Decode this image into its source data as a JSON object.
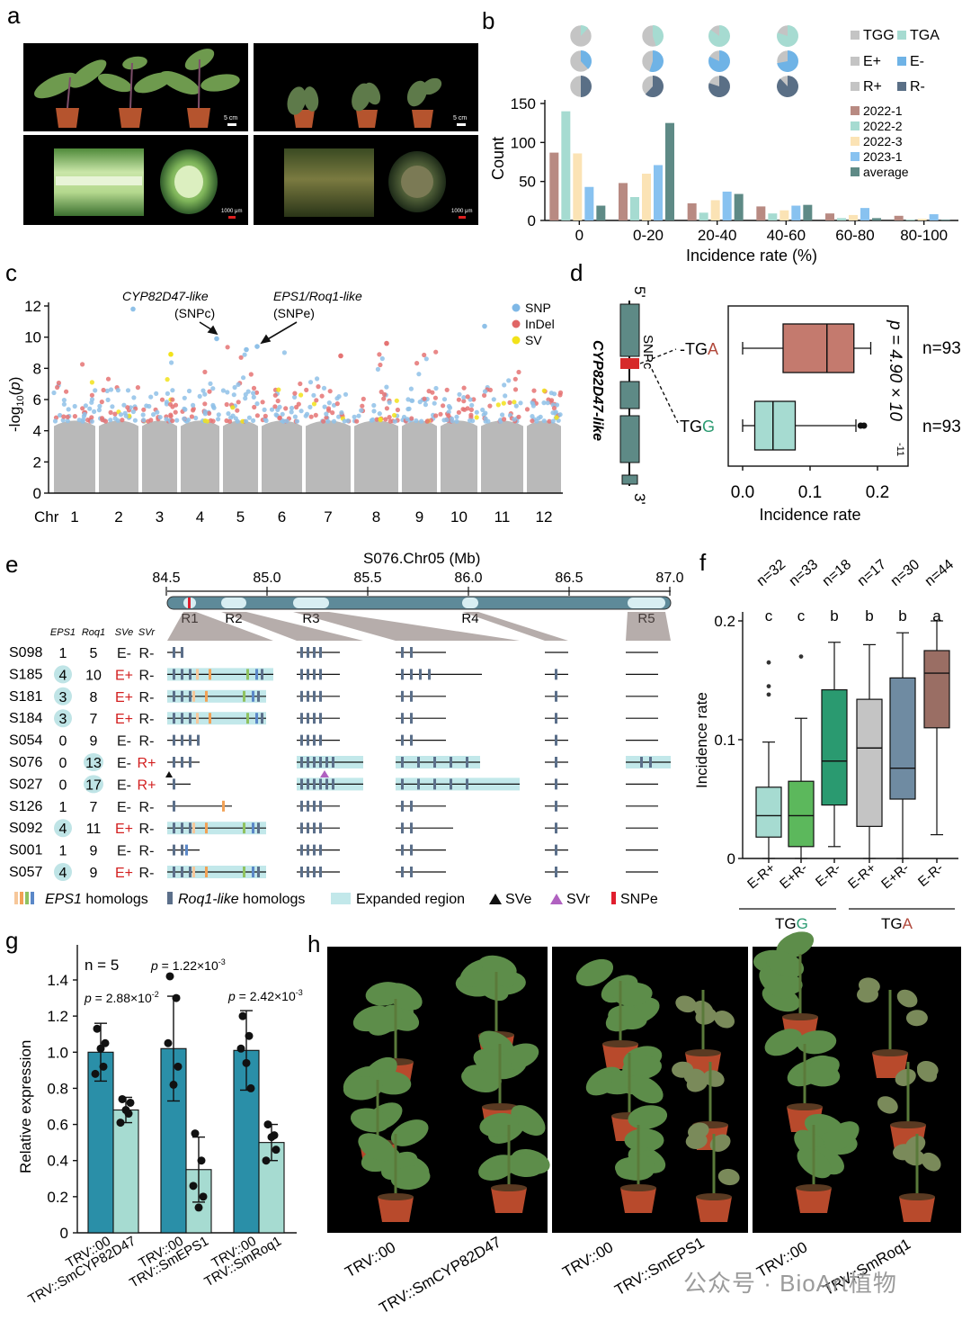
{
  "panels": {
    "a": "a",
    "b": "b",
    "c": "c",
    "d": "d",
    "e": "e",
    "f": "f",
    "g": "g",
    "h": "h"
  },
  "panel_a": {
    "scale_top_left": "5 cm",
    "scale_top_right": "5 cm",
    "scale_bottom_left": "1000 μm",
    "scale_bottom_right": "1000 μm"
  },
  "panel_b": {
    "legend_pies": [
      "TGG",
      "TGA",
      "E+",
      "E-",
      "R+",
      "R-"
    ],
    "colors": {
      "TGG": "#c4c4c4",
      "TGA": "#a6dbd1",
      "E+": "#c4c4c4",
      "E-": "#6fb3e6",
      "R+": "#c4c4c4",
      "R-": "#5a6f86"
    }
  },
  "panel_c": {
    "annot_left": "CYP82D47-like",
    "annot_left_sub": "(SNPc)",
    "annot_right": "EPS1/Roq1-like",
    "annot_right_sub": "(SNPe)",
    "legend": [
      "SNP",
      "InDel",
      "SV"
    ],
    "legend_colors": [
      "#7fb8e6",
      "#e06666",
      "#f2e21a"
    ],
    "ylabel": "-log10(p)",
    "chr_label": "Chr",
    "chromosomes": [
      "1",
      "2",
      "3",
      "4",
      "5",
      "6",
      "7",
      "8",
      "9",
      "10",
      "11",
      "12"
    ],
    "yticks": [
      "0",
      "2",
      "4",
      "6",
      "8",
      "10",
      "12"
    ]
  },
  "panel_d": {
    "gene": "CYP82D47-like",
    "five_prime": "5'",
    "three_prime": "3'",
    "snp": "SNPc",
    "allele_a": "TGA",
    "allele_g": "TGG",
    "n_a": "n=93",
    "n_g": "n=93",
    "pvalue": "p = 4.90 × 10",
    "pvalue_exp": "-11",
    "xlabel": "Incidence rate",
    "xticks": [
      "0.0",
      "0.1",
      "0.2"
    ]
  },
  "panel_e": {
    "title": "S076.Chr05 (Mb)",
    "ticks": [
      "84.5",
      "85.0",
      "85.5",
      "86.0",
      "86.5",
      "87.0"
    ],
    "regions": [
      "R1",
      "R2",
      "R3",
      "R4",
      "R5"
    ],
    "col_headers": [
      "EPS1",
      "Roq1",
      "SVe",
      "SVr"
    ],
    "rows": [
      {
        "id": "S098",
        "eps1": "1",
        "roq1": "5",
        "sve": "E-",
        "svr": "R-"
      },
      {
        "id": "S185",
        "eps1": "4",
        "roq1": "10",
        "sve": "E+",
        "svr": "R-"
      },
      {
        "id": "S181",
        "eps1": "3",
        "roq1": "8",
        "sve": "E+",
        "svr": "R-"
      },
      {
        "id": "S184",
        "eps1": "3",
        "roq1": "7",
        "sve": "E+",
        "svr": "R-"
      },
      {
        "id": "S054",
        "eps1": "0",
        "roq1": "9",
        "sve": "E-",
        "svr": "R-"
      },
      {
        "id": "S076",
        "eps1": "0",
        "roq1": "13",
        "sve": "E-",
        "svr": "R+"
      },
      {
        "id": "S027",
        "eps1": "0",
        "roq1": "17",
        "sve": "E-",
        "svr": "R+"
      },
      {
        "id": "S126",
        "eps1": "1",
        "roq1": "7",
        "sve": "E-",
        "svr": "R-"
      },
      {
        "id": "S092",
        "eps1": "4",
        "roq1": "11",
        "sve": "E+",
        "svr": "R-"
      },
      {
        "id": "S001",
        "eps1": "1",
        "roq1": "9",
        "sve": "E-",
        "svr": "R-"
      },
      {
        "id": "S057",
        "eps1": "4",
        "roq1": "9",
        "sve": "E+",
        "svr": "R-"
      }
    ],
    "legend": {
      "eps1": "EPS1",
      "eps1_suffix": " homologs",
      "roq1": "Roq1-like",
      "roq1_suffix": " homologs",
      "expanded": "Expanded region",
      "sve": "SVe",
      "svr": "SVr",
      "snpe": "SNPe"
    }
  },
  "chart_data": [
    {
      "panel": "b",
      "type": "bar",
      "categories": [
        "0",
        "0-20",
        "20-40",
        "40-60",
        "60-80",
        "80-100"
      ],
      "series": [
        {
          "name": "2022-1",
          "color": "#b88a82",
          "values": [
            87,
            48,
            22,
            18,
            9,
            6
          ]
        },
        {
          "name": "2022-2",
          "color": "#a6dbd1",
          "values": [
            140,
            30,
            10,
            9,
            3,
            1
          ]
        },
        {
          "name": "2022-3",
          "color": "#fbe3b5",
          "values": [
            86,
            60,
            26,
            13,
            7,
            2
          ]
        },
        {
          "name": "2023-1",
          "color": "#88c2f0",
          "values": [
            43,
            71,
            37,
            19,
            16,
            8
          ]
        },
        {
          "name": "average",
          "color": "#5e8a86",
          "values": [
            19,
            125,
            34,
            20,
            3,
            1
          ]
        }
      ],
      "pies": [
        {
          "category": "0",
          "TGA": 0.12,
          "E-": 0.38,
          "R-": 0.5
        },
        {
          "category": "0-20",
          "TGA": 0.45,
          "E-": 0.55,
          "R-": 0.62
        },
        {
          "category": "20-40",
          "TGA": 0.85,
          "E-": 0.82,
          "R-": 0.8
        },
        {
          "category": "40-60",
          "TGA": 0.8,
          "E-": 0.72,
          "R-": 0.88
        }
      ],
      "xlabel": "Incidence rate (%)",
      "ylabel": "Count",
      "ylim": [
        0,
        150
      ],
      "yticks": [
        "0",
        "50",
        "100",
        "150"
      ],
      "legend_position": "right"
    },
    {
      "panel": "d",
      "type": "box",
      "categories": [
        "TGA",
        "TGG"
      ],
      "boxes": [
        {
          "name": "TGA",
          "color": "#c47a6e",
          "min": 0.0,
          "q1": 0.06,
          "median": 0.125,
          "q3": 0.165,
          "max": 0.19,
          "outliers": []
        },
        {
          "name": "TGG",
          "color": "#a6dbd1",
          "min": 0.0,
          "q1": 0.018,
          "median": 0.045,
          "q3": 0.078,
          "max": 0.168,
          "outliers": [
            0.175,
            0.18
          ]
        }
      ],
      "xlim": [
        0.0,
        0.22
      ],
      "xlabel": "Incidence rate"
    },
    {
      "panel": "f",
      "type": "box",
      "categories": [
        "E-R+",
        "E+R-",
        "E-R-",
        "E-R+",
        "E+R-",
        "E-R-"
      ],
      "groups": [
        "TGG",
        "TGA"
      ],
      "n_labels": [
        "n=32",
        "n=33",
        "n=18",
        "n=17",
        "n=30",
        "n=44"
      ],
      "letters": [
        "c",
        "c",
        "b",
        "b",
        "b",
        "a"
      ],
      "boxes": [
        {
          "color": "#a6dbd1",
          "min": 0.0,
          "q1": 0.018,
          "median": 0.036,
          "q3": 0.06,
          "max": 0.098,
          "outliers": [
            0.138,
            0.145,
            0.165
          ]
        },
        {
          "color": "#5cb85c",
          "min": 0.0,
          "q1": 0.01,
          "median": 0.036,
          "q3": 0.065,
          "max": 0.118,
          "outliers": [
            0.17
          ]
        },
        {
          "color": "#2a9a70",
          "min": 0.01,
          "q1": 0.045,
          "median": 0.082,
          "q3": 0.142,
          "max": 0.182,
          "outliers": []
        },
        {
          "color": "#c4c4c4",
          "min": 0.0,
          "q1": 0.027,
          "median": 0.093,
          "q3": 0.134,
          "max": 0.18,
          "outliers": []
        },
        {
          "color": "#6f8ba2",
          "min": 0.0,
          "q1": 0.05,
          "median": 0.076,
          "q3": 0.152,
          "max": 0.19,
          "outliers": []
        },
        {
          "color": "#9a6e64",
          "min": 0.02,
          "q1": 0.11,
          "median": 0.156,
          "q3": 0.175,
          "max": 0.2,
          "outliers": []
        }
      ],
      "ylabel": "Incidence rate",
      "yticks": [
        "0",
        "0.1",
        "0.2"
      ],
      "ylim": [
        0,
        0.22
      ]
    },
    {
      "panel": "g",
      "type": "bar",
      "categories": [
        "TRV::00",
        "TRV::SmCYP82D47",
        "TRV::00",
        "TRV::SmEPS1",
        "TRV::00",
        "TRV::SmRoq1"
      ],
      "values": [
        1.0,
        0.68,
        1.02,
        0.35,
        1.01,
        0.5
      ],
      "errors": [
        0.16,
        0.07,
        0.29,
        0.18,
        0.22,
        0.1
      ],
      "points": [
        [
          1.13,
          0.92,
          0.88,
          1.05,
          1.02
        ],
        [
          0.74,
          0.66,
          0.61,
          0.72,
          0.68
        ],
        [
          1.42,
          1.3,
          1.05,
          0.92,
          0.82
        ],
        [
          0.55,
          0.4,
          0.26,
          0.2,
          0.14
        ],
        [
          1.2,
          1.09,
          1.02,
          0.8,
          0.94
        ],
        [
          0.6,
          0.54,
          0.4,
          0.46,
          0.53
        ]
      ],
      "colors": [
        "#2a8fa8",
        "#a6dbd1"
      ],
      "ylabel": "Relative expression",
      "ylim": [
        0,
        1.5
      ],
      "yticks": [
        "0",
        "0.2",
        "0.4",
        "0.6",
        "0.8",
        "1.0",
        "1.2",
        "1.4"
      ],
      "n_label": "n = 5",
      "pvalues": [
        {
          "base": "p = 2.88×10",
          "exp": "-2"
        },
        {
          "base": "p = 1.22×10",
          "exp": "-3"
        },
        {
          "base": "p = 2.42×10",
          "exp": "-3"
        }
      ]
    }
  ],
  "panel_f": {
    "group_tgg": "TGG",
    "group_tga": "TGA"
  },
  "panel_h": {
    "labels": [
      "TRV::00",
      "TRV::SmCYP82D47",
      "TRV::00",
      "TRV::SmEPS1",
      "TRV::00",
      "TRV::SmRoq1"
    ]
  },
  "watermark": "公众号 · BioArt植物"
}
